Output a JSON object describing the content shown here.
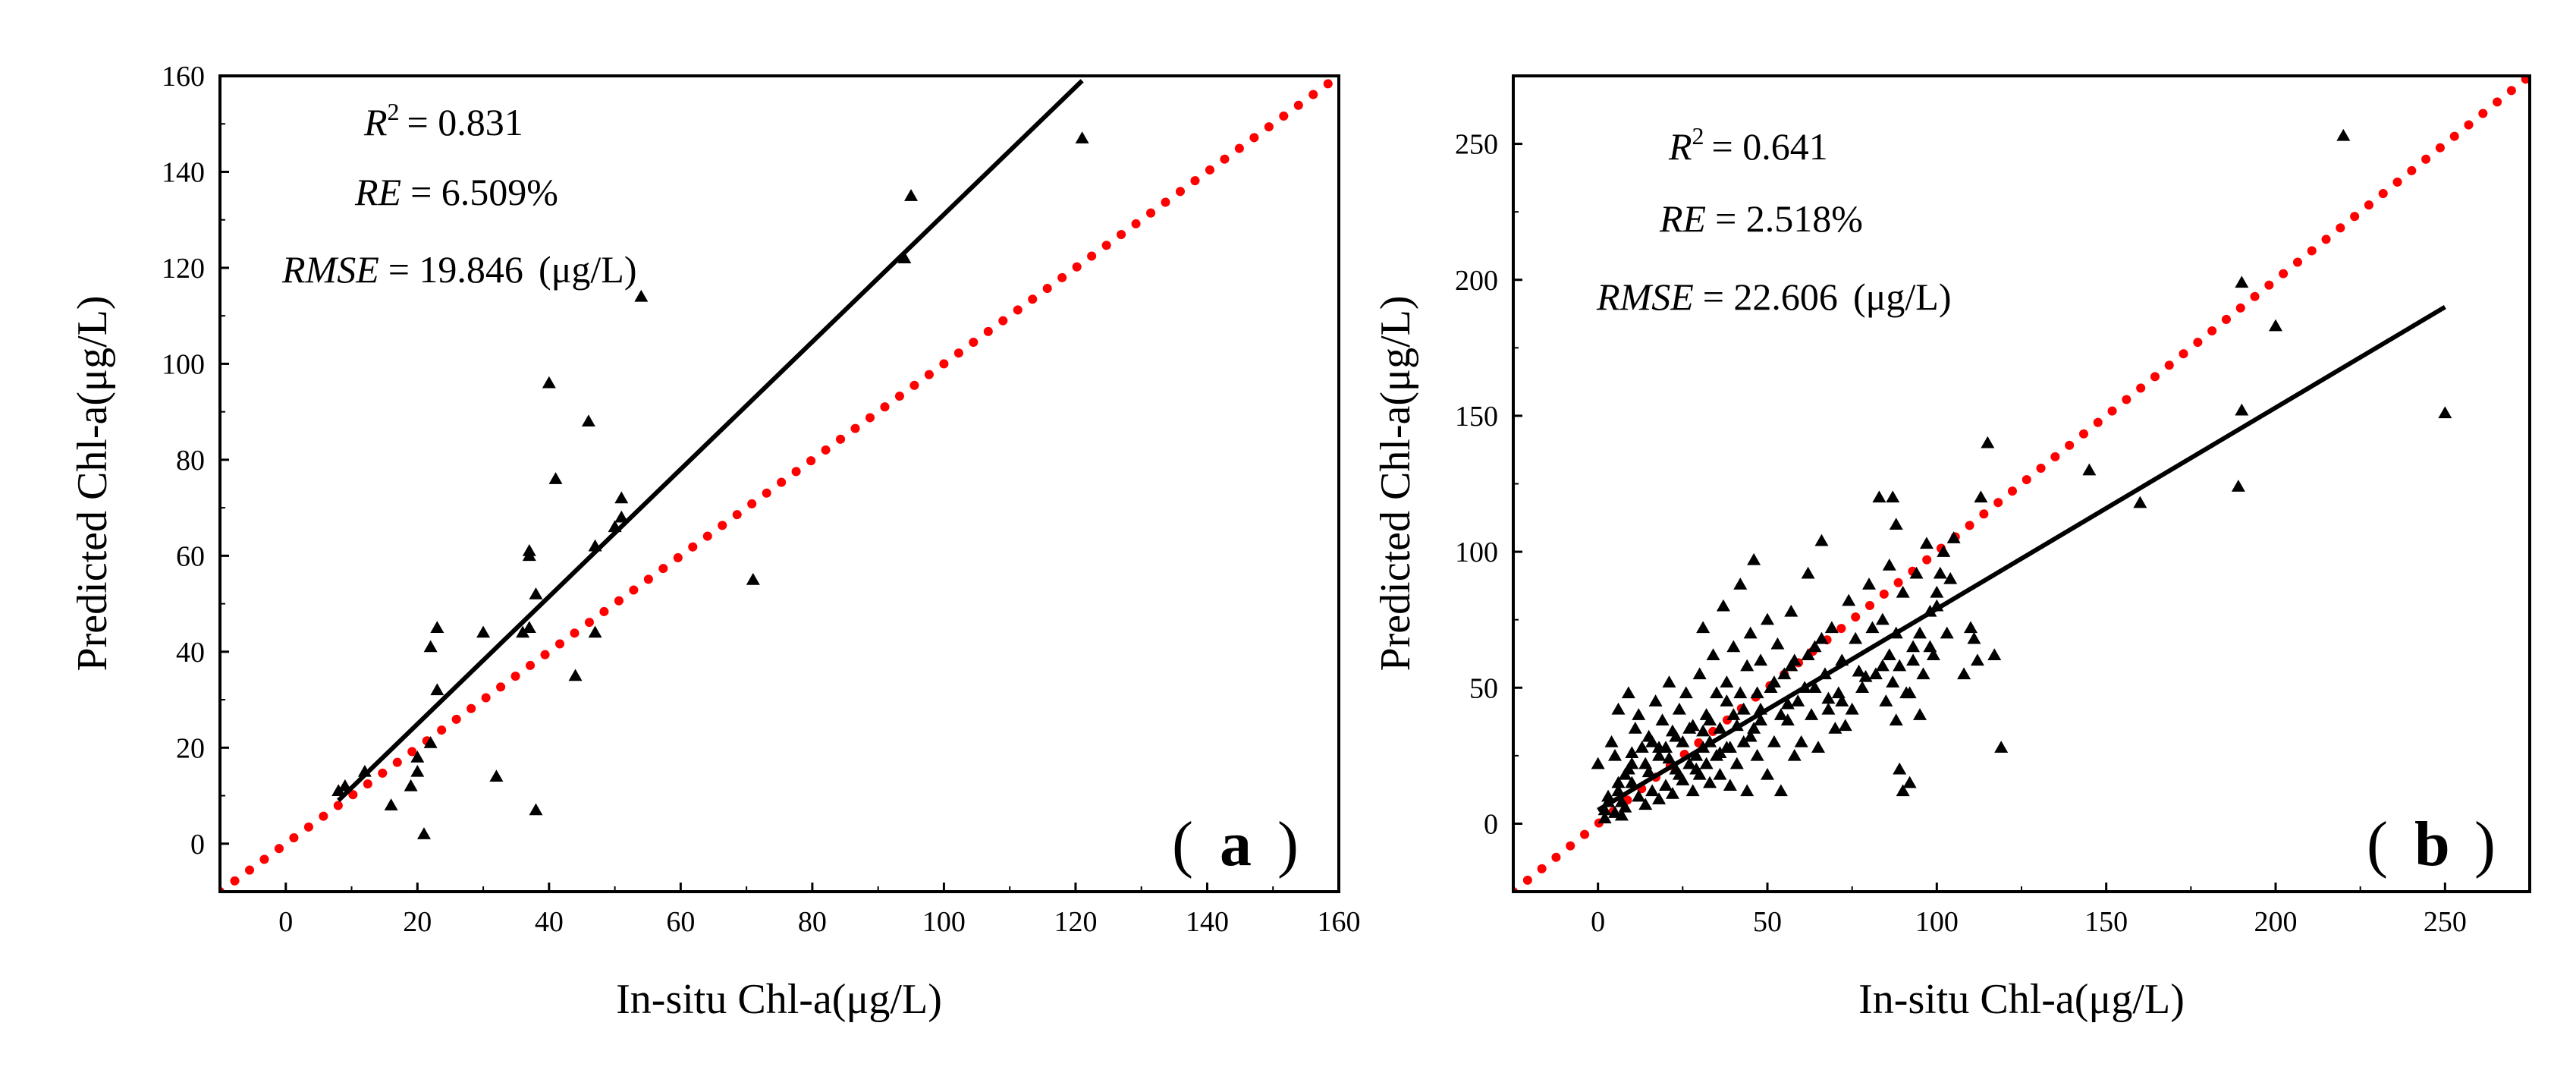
{
  "chart_data": [
    {
      "type": "scatter",
      "panel_label": "a",
      "xlabel": "In-situ Chl-a(μg/L)",
      "ylabel": "Predicted Chl-a(μg/L)",
      "xlim": [
        -10,
        160
      ],
      "ylim": [
        -10,
        160
      ],
      "xticks": [
        0,
        20,
        40,
        60,
        80,
        100,
        120,
        140,
        160
      ],
      "yticks": [
        0,
        20,
        40,
        60,
        80,
        100,
        120,
        140,
        160
      ],
      "stats": {
        "r2_label": "R",
        "r2_sup": "2",
        "r2_value": "= 0.831",
        "re_label": "RE",
        "re_value": "= 6.509%",
        "rmse_label": "RMSE",
        "rmse_value": "= 19.846",
        "rmse_unit": "(μg/L)"
      },
      "fit_line": {
        "x": [
          8,
          121
        ],
        "y": [
          9,
          159
        ],
        "color": "#000000"
      },
      "identity_line": {
        "x": [
          -10,
          160
        ],
        "y": [
          -10,
          160
        ],
        "color": "#ff0000"
      },
      "marker_color": "#000000",
      "x": [
        8,
        9,
        12,
        16,
        19,
        20,
        20,
        21,
        22,
        22,
        23,
        23,
        30,
        32,
        36,
        37,
        37,
        37,
        38,
        38,
        40,
        41,
        44,
        46,
        47,
        47,
        50,
        51,
        51,
        54,
        71,
        94,
        95,
        121
      ],
      "y": [
        11,
        12,
        15,
        8,
        12,
        15,
        18,
        2,
        21,
        41,
        45,
        32,
        44,
        14,
        44,
        45,
        60,
        61,
        52,
        7,
        96,
        76,
        35,
        88,
        62,
        44,
        66,
        68,
        72,
        114,
        55,
        122,
        135,
        147
      ]
    },
    {
      "type": "scatter",
      "panel_label": "b",
      "xlabel": "In-situ Chl-a(μg/L)",
      "ylabel": "Predicted Chl-a(μg/L)",
      "xlim": [
        -25,
        275
      ],
      "ylim": [
        -25,
        275
      ],
      "xticks": [
        0,
        50,
        100,
        150,
        200,
        250
      ],
      "yticks": [
        0,
        50,
        100,
        150,
        200,
        250
      ],
      "stats": {
        "r2_label": "R",
        "r2_sup": "2",
        "r2_value": "= 0.641",
        "re_label": "RE",
        "re_value": "= 2.518%",
        "rmse_label": "RMSE",
        "rmse_value": "= 22.606",
        "rmse_unit": "(μg/L)"
      },
      "fit_line": {
        "x": [
          0,
          250
        ],
        "y": [
          5,
          190
        ],
        "color": "#000000"
      },
      "identity_line": {
        "x": [
          -25,
          275
        ],
        "y": [
          -25,
          275
        ],
        "color": "#ff0000"
      },
      "marker_color": "#000000",
      "x": [
        0,
        2,
        3,
        4,
        5,
        5,
        6,
        6,
        7,
        8,
        8,
        9,
        10,
        10,
        11,
        12,
        12,
        13,
        14,
        15,
        15,
        16,
        17,
        18,
        18,
        19,
        20,
        20,
        21,
        22,
        22,
        23,
        24,
        25,
        25,
        26,
        27,
        28,
        28,
        29,
        30,
        30,
        31,
        31,
        32,
        32,
        33,
        33,
        34,
        35,
        35,
        36,
        36,
        37,
        38,
        38,
        39,
        40,
        40,
        41,
        42,
        42,
        43,
        44,
        44,
        45,
        46,
        46,
        47,
        48,
        48,
        50,
        50,
        51,
        52,
        53,
        54,
        55,
        56,
        57,
        58,
        58,
        59,
        60,
        61,
        62,
        63,
        64,
        65,
        66,
        67,
        68,
        69,
        70,
        71,
        72,
        74,
        75,
        76,
        78,
        80,
        82,
        83,
        84,
        85,
        86,
        86,
        87,
        87,
        88,
        88,
        88,
        89,
        89,
        90,
        90,
        91,
        92,
        93,
        94,
        95,
        96,
        97,
        98,
        99,
        100,
        100,
        102,
        104,
        105,
        110,
        111,
        113,
        115,
        117,
        119,
        145,
        160,
        189,
        190,
        190,
        200,
        220,
        250,
        3,
        6,
        9,
        14,
        18,
        23,
        27,
        33,
        38,
        43,
        47,
        52,
        57,
        62,
        66,
        72,
        77,
        81,
        92,
        98,
        103,
        45,
        36,
        29,
        24,
        41,
        54,
        68,
        79,
        93,
        10,
        16,
        21,
        31,
        39,
        48,
        56,
        64,
        73,
        84,
        95,
        101,
        108,
        112,
        2,
        7
      ],
      "y": [
        22,
        5,
        10,
        30,
        4,
        25,
        12,
        42,
        8,
        18,
        6,
        48,
        15,
        22,
        35,
        10,
        40,
        28,
        7,
        19,
        32,
        12,
        45,
        9,
        25,
        38,
        14,
        28,
        52,
        11,
        34,
        20,
        42,
        16,
        30,
        48,
        22,
        12,
        36,
        25,
        18,
        55,
        28,
        72,
        22,
        40,
        15,
        30,
        62,
        25,
        48,
        18,
        35,
        80,
        28,
        52,
        14,
        40,
        65,
        22,
        48,
        88,
        30,
        58,
        12,
        70,
        35,
        97,
        25,
        60,
        42,
        18,
        75,
        50,
        30,
        66,
        12,
        55,
        38,
        78,
        25,
        60,
        45,
        30,
        50,
        92,
        40,
        65,
        28,
        104,
        55,
        42,
        72,
        35,
        48,
        60,
        82,
        42,
        68,
        50,
        88,
        55,
        120,
        75,
        45,
        95,
        62,
        120,
        52,
        110,
        70,
        38,
        20,
        58,
        12,
        85,
        48,
        15,
        65,
        92,
        70,
        55,
        103,
        78,
        62,
        80,
        85,
        100,
        90,
        105,
        72,
        68,
        120,
        140,
        62,
        28,
        130,
        118,
        124,
        152,
        199,
        183,
        253,
        151,
        8,
        15,
        20,
        22,
        28,
        32,
        35,
        38,
        45,
        42,
        48,
        52,
        58,
        62,
        68,
        45,
        56,
        72,
        48,
        65,
        70,
        32,
        26,
        20,
        18,
        36,
        40,
        46,
        54,
        60,
        26,
        30,
        24,
        34,
        28,
        38,
        44,
        50,
        36,
        58,
        40,
        92,
        55,
        60,
        2,
        3
      ]
    }
  ]
}
